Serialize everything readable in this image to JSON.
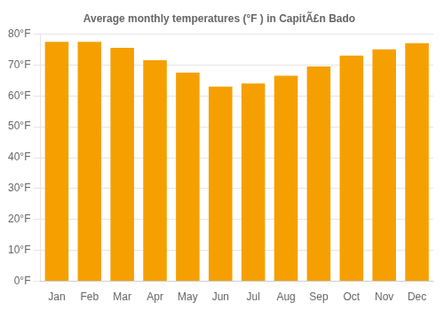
{
  "chart_data": {
    "type": "bar",
    "title": "Average monthly temperatures (°F ) in CapitÃ£n Bado",
    "categories": [
      "Jan",
      "Feb",
      "Mar",
      "Apr",
      "May",
      "Jun",
      "Jul",
      "Aug",
      "Sep",
      "Oct",
      "Nov",
      "Dec"
    ],
    "values": [
      77.5,
      77.5,
      75.5,
      71.5,
      67.5,
      63.0,
      64.0,
      66.5,
      69.5,
      73.0,
      75.0,
      77.0
    ],
    "color": "#F5A000",
    "ylim": [
      0,
      80
    ],
    "yticks": [
      {
        "value": 0,
        "label": "0°F"
      },
      {
        "value": 10,
        "label": "10°F"
      },
      {
        "value": 20,
        "label": "20°F"
      },
      {
        "value": 30,
        "label": "30°F"
      },
      {
        "value": 40,
        "label": "40°F"
      },
      {
        "value": 50,
        "label": "50°F"
      },
      {
        "value": 60,
        "label": "60°F"
      },
      {
        "value": 70,
        "label": "70°F"
      },
      {
        "value": 80,
        "label": "80°F"
      }
    ],
    "grid": true
  }
}
